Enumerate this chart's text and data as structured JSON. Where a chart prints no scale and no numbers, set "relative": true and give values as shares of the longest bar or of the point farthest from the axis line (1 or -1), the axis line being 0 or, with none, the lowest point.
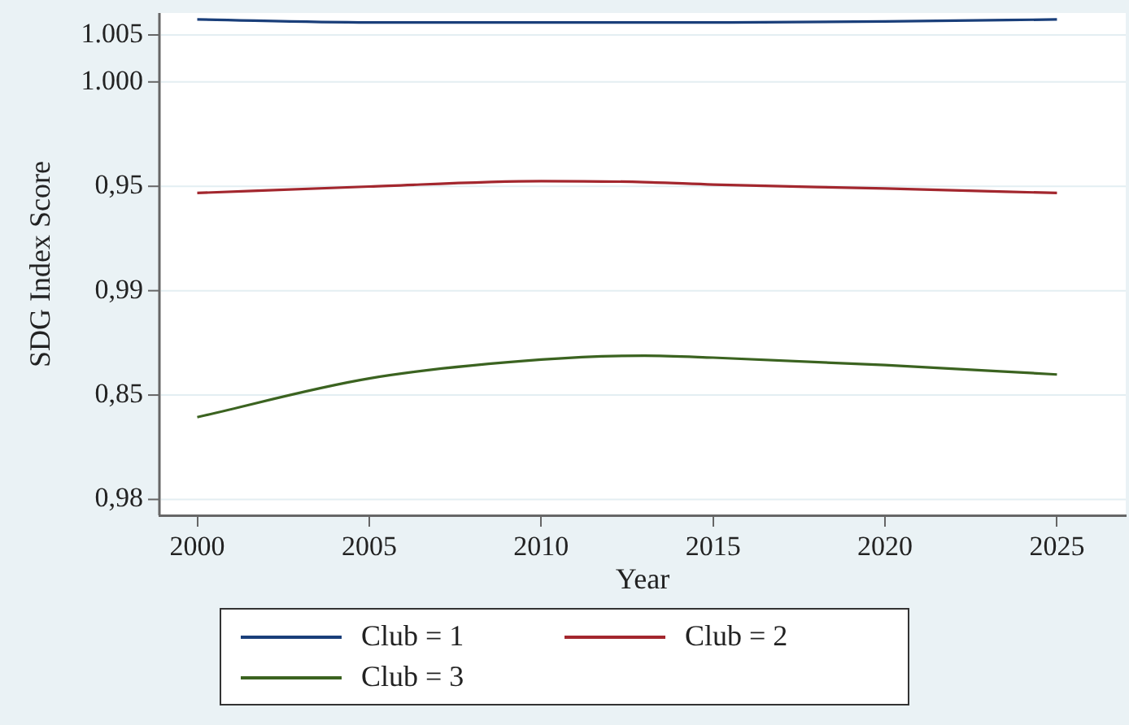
{
  "chart_data": {
    "type": "line",
    "xlabel": "Year",
    "ylabel": "SDG Index Score",
    "relative": true,
    "x": [
      2000,
      2005,
      2010,
      2013,
      2015,
      2020,
      2025
    ],
    "series": [
      {
        "name": "Club = 1",
        "color": "#1a3f7a",
        "values": [
          1,
          0.994,
          0.994,
          0.994,
          0.994,
          0.996,
          1
        ]
      },
      {
        "name": "Club = 2",
        "color": "#a3272e",
        "values": [
          0.65,
          0.663,
          0.674,
          0.672,
          0.667,
          0.659,
          0.65
        ]
      },
      {
        "name": "Club = 3",
        "color": "#3b6320",
        "values": [
          0.198,
          0.276,
          0.314,
          0.322,
          0.318,
          0.303,
          0.284
        ]
      }
    ],
    "xlim": [
      1998.9,
      2027
    ],
    "xticks": [
      2000,
      2005,
      2010,
      2015,
      2020,
      2025
    ],
    "annotations": [
      "0,98",
      "0,85",
      "0,99",
      "0,95",
      "1.000",
      "1.005"
    ],
    "grid": "y",
    "legend": "bottom",
    "marker": "none",
    "line_style": "solid"
  }
}
